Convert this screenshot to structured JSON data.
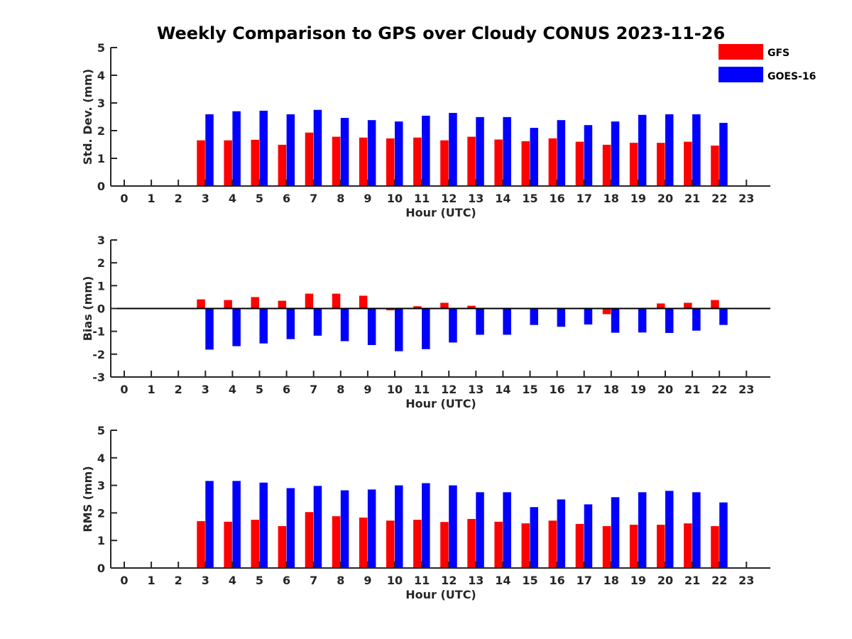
{
  "chart_data": {
    "title": "Weekly Comparison to GPS over Cloudy CONUS 2023-11-26",
    "type": "bar",
    "hours": [
      0,
      1,
      2,
      3,
      4,
      5,
      6,
      7,
      8,
      9,
      10,
      11,
      12,
      13,
      14,
      15,
      16,
      17,
      18,
      19,
      20,
      21,
      22,
      23
    ],
    "legend": {
      "placement": "top-right",
      "entries": [
        {
          "name": "GFS",
          "color": "#ff0000"
        },
        {
          "name": "GOES-16",
          "color": "#0000ff"
        }
      ]
    },
    "panels": [
      {
        "id": "std",
        "ylabel": "Std. Dev. (mm)",
        "xlabel": "Hour (UTC)",
        "ylim": [
          0,
          5
        ],
        "yticks": [
          0,
          1,
          2,
          3,
          4,
          5
        ],
        "series": [
          {
            "name": "GFS",
            "color": "#ff0000",
            "values": [
              null,
              null,
              null,
              1.65,
              1.65,
              1.67,
              1.49,
              1.93,
              1.78,
              1.75,
              1.72,
              1.75,
              1.65,
              1.78,
              1.68,
              1.62,
              1.72,
              1.6,
              1.49,
              1.56,
              1.56,
              1.6,
              1.46,
              null
            ]
          },
          {
            "name": "GOES-16",
            "color": "#0000ff",
            "values": [
              null,
              null,
              null,
              2.59,
              2.7,
              2.72,
              2.59,
              2.75,
              2.46,
              2.38,
              2.33,
              2.54,
              2.64,
              2.49,
              2.49,
              2.1,
              2.38,
              2.2,
              2.33,
              2.57,
              2.59,
              2.59,
              2.28,
              null
            ]
          }
        ]
      },
      {
        "id": "bias",
        "ylabel": "Bias (mm)",
        "xlabel": "Hour (UTC)",
        "ylim": [
          -3,
          3
        ],
        "yticks": [
          -3,
          -2,
          -1,
          0,
          1,
          2,
          3
        ],
        "series": [
          {
            "name": "GFS",
            "color": "#ff0000",
            "values": [
              null,
              null,
              null,
              0.4,
              0.37,
              0.5,
              0.34,
              0.65,
              0.65,
              0.56,
              -0.08,
              0.1,
              0.25,
              0.12,
              0.0,
              -0.02,
              0.0,
              0.0,
              -0.25,
              0.0,
              0.22,
              0.25,
              0.37,
              null
            ]
          },
          {
            "name": "GOES-16",
            "color": "#0000ff",
            "values": [
              null,
              null,
              null,
              -1.8,
              -1.65,
              -1.53,
              -1.34,
              -1.19,
              -1.43,
              -1.6,
              -1.87,
              -1.78,
              -1.49,
              -1.15,
              -1.15,
              -0.72,
              -0.8,
              -0.7,
              -1.06,
              -1.05,
              -1.07,
              -0.97,
              -0.72,
              null
            ]
          }
        ]
      },
      {
        "id": "rms",
        "ylabel": "RMS (mm)",
        "xlabel": "Hour (UTC)",
        "ylim": [
          0,
          5
        ],
        "yticks": [
          0,
          1,
          2,
          3,
          4,
          5
        ],
        "series": [
          {
            "name": "GFS",
            "color": "#ff0000",
            "values": [
              null,
              null,
              null,
              1.7,
              1.68,
              1.75,
              1.52,
              2.03,
              1.88,
              1.83,
              1.72,
              1.75,
              1.67,
              1.78,
              1.68,
              1.62,
              1.72,
              1.6,
              1.52,
              1.57,
              1.57,
              1.62,
              1.52,
              null
            ]
          },
          {
            "name": "GOES-16",
            "color": "#0000ff",
            "values": [
              null,
              null,
              null,
              3.16,
              3.16,
              3.1,
              2.9,
              2.98,
              2.82,
              2.85,
              3.0,
              3.08,
              3.0,
              2.75,
              2.75,
              2.21,
              2.49,
              2.31,
              2.57,
              2.75,
              2.8,
              2.75,
              2.38,
              null
            ]
          }
        ]
      }
    ]
  }
}
